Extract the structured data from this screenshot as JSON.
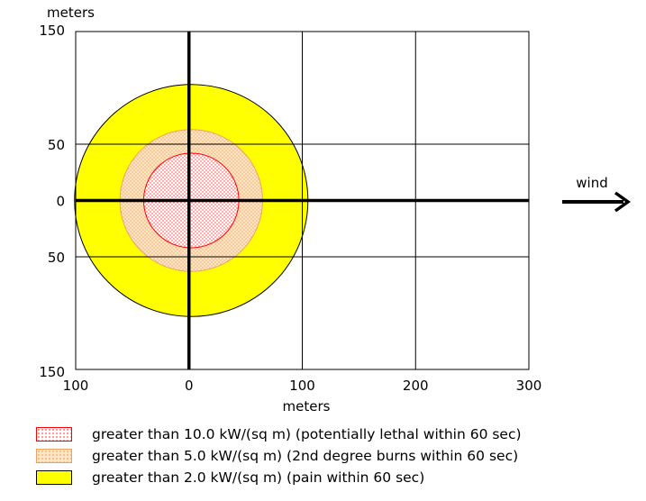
{
  "chart_data": {
    "type": "threat-zone-plot",
    "title": "",
    "xlabel": "meters",
    "ylabel": "meters",
    "xlim": [
      -100,
      300
    ],
    "ylim": [
      -150,
      150
    ],
    "x_ticks": [
      -100,
      0,
      100,
      200,
      300
    ],
    "x_tick_labels": [
      "100",
      "0",
      "100",
      "200",
      "300"
    ],
    "y_ticks": [
      150,
      50,
      0,
      -50,
      -150
    ],
    "y_tick_labels": [
      "150",
      "50",
      "0",
      "50",
      "150"
    ],
    "grid": true,
    "wind_label": "wind",
    "wind_direction": "right",
    "zones": [
      {
        "name": "greater than 2.0 kW/(sq m) (pain within 60 sec)",
        "center_x": 2,
        "center_y": 0,
        "radius": 103,
        "fill": "#ffff00",
        "stroke": "#000000",
        "pattern": "solid"
      },
      {
        "name": "greater than 5.0 kW/(sq m) (2nd degree burns within 60 sec)",
        "center_x": 2,
        "center_y": 0,
        "radius": 63,
        "fill": "#fde3c0",
        "stroke": "#f0a060",
        "pattern": "dots"
      },
      {
        "name": "greater than 10.0 kW/(sq m) (potentially lethal within 60 sec)",
        "center_x": 2,
        "center_y": 0,
        "radius": 42,
        "fill": "#ffffff",
        "stroke": "#ff0000",
        "pattern": "dots"
      }
    ]
  },
  "legend": {
    "items": [
      {
        "label": "greater than 10.0 kW/(sq m) (potentially lethal within 60 sec)",
        "swatch": "lethal"
      },
      {
        "label": "greater than 5.0 kW/(sq m) (2nd degree burns within 60 sec)",
        "swatch": "burns"
      },
      {
        "label": "greater than 2.0 kW/(sq m) (pain within 60 sec)",
        "swatch": "pain"
      }
    ]
  }
}
